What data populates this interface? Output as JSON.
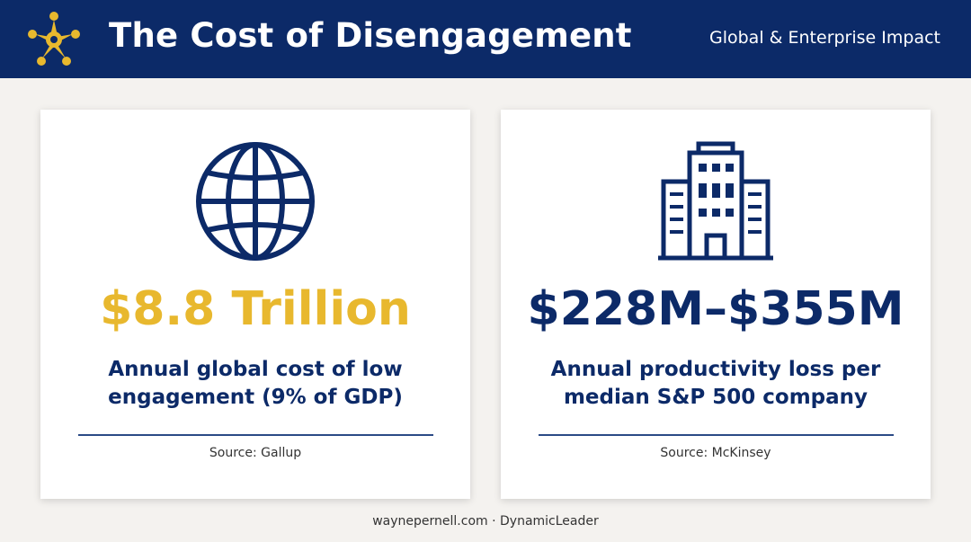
{
  "header": {
    "title": "The Cost of Disengagement",
    "subtitle": "Global & Enterprise Impact"
  },
  "cards": [
    {
      "value": "$8.8 Trillion",
      "description": [
        "Annual global cost of low",
        "engagement (9% of GDP)"
      ],
      "source": "Source: Gallup"
    },
    {
      "value": "$228M–$355M",
      "description": [
        "Annual productivity loss per",
        "median S&P 500 company"
      ],
      "source": "Source: McKinsey"
    }
  ],
  "footer": "waynepernell.com · DynamicLeader"
}
